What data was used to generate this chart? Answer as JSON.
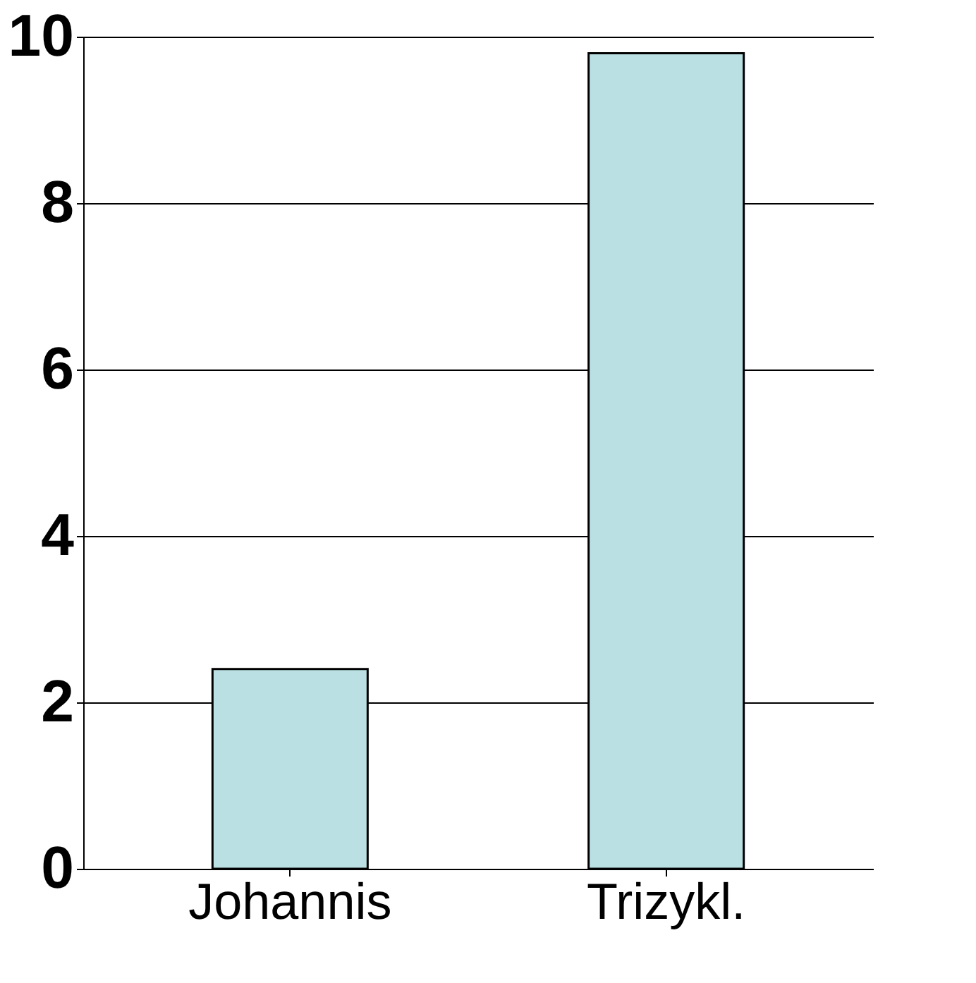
{
  "chart_data": {
    "type": "bar",
    "categories": [
      "Johannis",
      "Trizykl."
    ],
    "values": [
      2.4,
      9.8
    ],
    "color": "#bbe0e3",
    "ylim": [
      0,
      10
    ],
    "yticks": [
      0,
      2,
      4,
      6,
      8,
      10
    ],
    "grid": "y"
  }
}
